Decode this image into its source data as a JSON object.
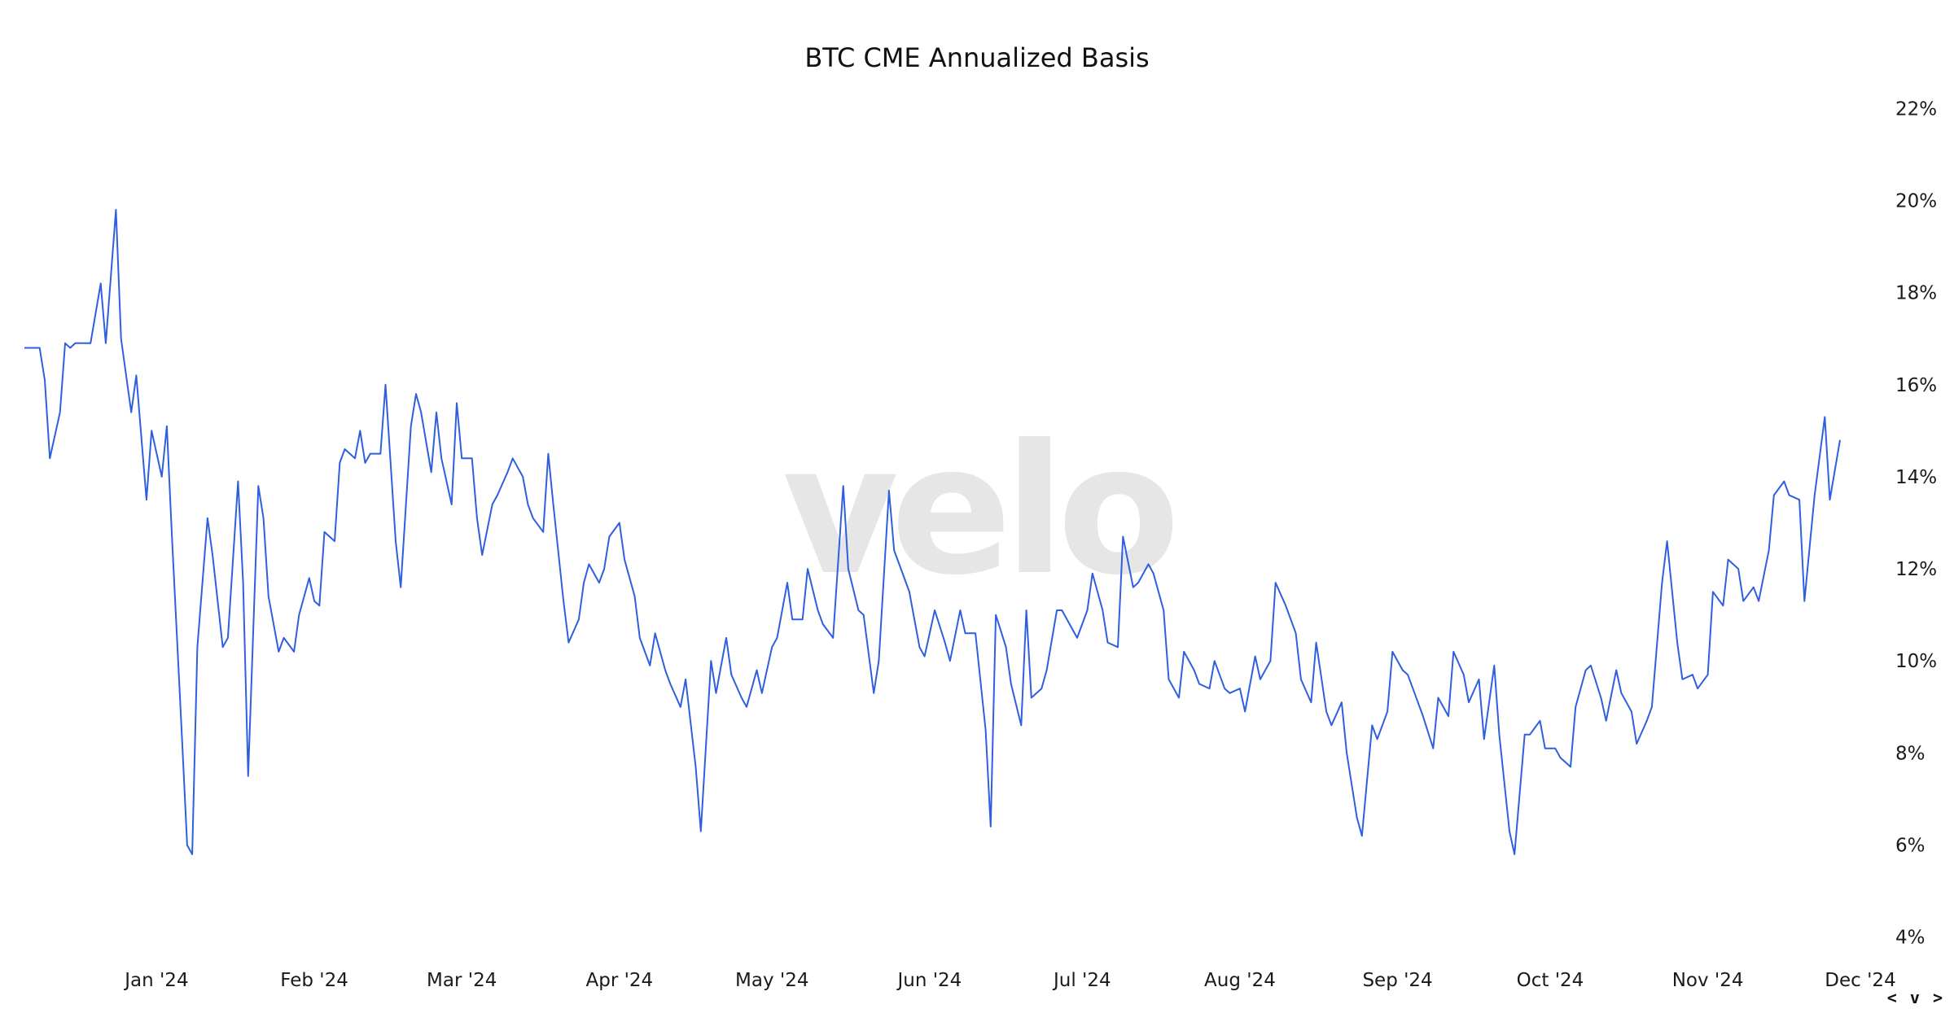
{
  "watermark": "velo",
  "nav": {
    "arrows": "< v >"
  },
  "chart_data": {
    "type": "line",
    "title": "BTC CME Annualized Basis",
    "xlabel": "",
    "ylabel": "",
    "y_axis_position": "right",
    "y_tick_format": "%",
    "ylim": [
      3.5,
      22.5
    ],
    "y_ticks": [
      4,
      6,
      8,
      10,
      12,
      14,
      16,
      18,
      20,
      22
    ],
    "x_range": [
      "2023-12-06",
      "2024-12-05"
    ],
    "x_ticks": [
      {
        "date": "2024-01-01",
        "label": "Jan '24"
      },
      {
        "date": "2024-02-01",
        "label": "Feb '24"
      },
      {
        "date": "2024-03-01",
        "label": "Mar '24"
      },
      {
        "date": "2024-04-01",
        "label": "Apr '24"
      },
      {
        "date": "2024-05-01",
        "label": "May '24"
      },
      {
        "date": "2024-06-01",
        "label": "Jun '24"
      },
      {
        "date": "2024-07-01",
        "label": "Jul '24"
      },
      {
        "date": "2024-08-01",
        "label": "Aug '24"
      },
      {
        "date": "2024-09-01",
        "label": "Sep '24"
      },
      {
        "date": "2024-10-01",
        "label": "Oct '24"
      },
      {
        "date": "2024-11-01",
        "label": "Nov '24"
      },
      {
        "date": "2024-12-01",
        "label": "Dec '24"
      }
    ],
    "grid": false,
    "legend": "none",
    "series": [
      {
        "color": "#2f5fe0",
        "points": [
          [
            "2023-12-06",
            16.8
          ],
          [
            "2023-12-09",
            16.8
          ],
          [
            "2023-12-10",
            16.1
          ],
          [
            "2023-12-11",
            14.4
          ],
          [
            "2023-12-13",
            15.4
          ],
          [
            "2023-12-14",
            16.9
          ],
          [
            "2023-12-15",
            16.8
          ],
          [
            "2023-12-16",
            16.9
          ],
          [
            "2023-12-18",
            16.9
          ],
          [
            "2023-12-19",
            16.9
          ],
          [
            "2023-12-21",
            18.2
          ],
          [
            "2023-12-22",
            16.9
          ],
          [
            "2023-12-24",
            19.8
          ],
          [
            "2023-12-25",
            17.0
          ],
          [
            "2023-12-27",
            15.4
          ],
          [
            "2023-12-28",
            16.2
          ],
          [
            "2023-12-30",
            13.5
          ],
          [
            "2023-12-31",
            15.0
          ],
          [
            "2024-01-02",
            14.0
          ],
          [
            "2024-01-03",
            15.1
          ],
          [
            "2024-01-04",
            12.7
          ],
          [
            "2024-01-06",
            8.3
          ],
          [
            "2024-01-07",
            6.0
          ],
          [
            "2024-01-08",
            5.8
          ],
          [
            "2024-01-09",
            10.3
          ],
          [
            "2024-01-11",
            13.1
          ],
          [
            "2024-01-12",
            12.3
          ],
          [
            "2024-01-14",
            10.3
          ],
          [
            "2024-01-15",
            10.5
          ],
          [
            "2024-01-17",
            13.9
          ],
          [
            "2024-01-18",
            11.7
          ],
          [
            "2024-01-19",
            7.5
          ],
          [
            "2024-01-21",
            13.8
          ],
          [
            "2024-01-22",
            13.1
          ],
          [
            "2024-01-23",
            11.4
          ],
          [
            "2024-01-25",
            10.2
          ],
          [
            "2024-01-26",
            10.5
          ],
          [
            "2024-01-28",
            10.2
          ],
          [
            "2024-01-29",
            11.0
          ],
          [
            "2024-01-31",
            11.8
          ],
          [
            "2024-02-01",
            11.3
          ],
          [
            "2024-02-02",
            11.2
          ],
          [
            "2024-02-03",
            12.8
          ],
          [
            "2024-02-05",
            12.6
          ],
          [
            "2024-02-06",
            14.3
          ],
          [
            "2024-02-07",
            14.6
          ],
          [
            "2024-02-09",
            14.4
          ],
          [
            "2024-02-10",
            15.0
          ],
          [
            "2024-02-11",
            14.3
          ],
          [
            "2024-02-12",
            14.5
          ],
          [
            "2024-02-14",
            14.5
          ],
          [
            "2024-02-15",
            16.0
          ],
          [
            "2024-02-17",
            12.6
          ],
          [
            "2024-02-18",
            11.6
          ],
          [
            "2024-02-20",
            15.1
          ],
          [
            "2024-02-21",
            15.8
          ],
          [
            "2024-02-22",
            15.4
          ],
          [
            "2024-02-24",
            14.1
          ],
          [
            "2024-02-25",
            15.4
          ],
          [
            "2024-02-26",
            14.4
          ],
          [
            "2024-02-28",
            13.4
          ],
          [
            "2024-02-29",
            15.6
          ],
          [
            "2024-03-01",
            14.4
          ],
          [
            "2024-03-03",
            14.4
          ],
          [
            "2024-03-04",
            13.1
          ],
          [
            "2024-03-05",
            12.3
          ],
          [
            "2024-03-07",
            13.4
          ],
          [
            "2024-03-08",
            13.6
          ],
          [
            "2024-03-10",
            14.1
          ],
          [
            "2024-03-11",
            14.4
          ],
          [
            "2024-03-13",
            14.0
          ],
          [
            "2024-03-14",
            13.4
          ],
          [
            "2024-03-15",
            13.1
          ],
          [
            "2024-03-17",
            12.8
          ],
          [
            "2024-03-18",
            14.5
          ],
          [
            "2024-03-19",
            13.4
          ],
          [
            "2024-03-21",
            11.3
          ],
          [
            "2024-03-22",
            10.4
          ],
          [
            "2024-03-24",
            10.9
          ],
          [
            "2024-03-25",
            11.7
          ],
          [
            "2024-03-26",
            12.1
          ],
          [
            "2024-03-28",
            11.7
          ],
          [
            "2024-03-29",
            12.0
          ],
          [
            "2024-03-30",
            12.7
          ],
          [
            "2024-04-01",
            13.0
          ],
          [
            "2024-04-02",
            12.2
          ],
          [
            "2024-04-04",
            11.4
          ],
          [
            "2024-04-05",
            10.5
          ],
          [
            "2024-04-07",
            9.9
          ],
          [
            "2024-04-08",
            10.6
          ],
          [
            "2024-04-10",
            9.8
          ],
          [
            "2024-04-11",
            9.5
          ],
          [
            "2024-04-13",
            9.0
          ],
          [
            "2024-04-14",
            9.6
          ],
          [
            "2024-04-16",
            7.7
          ],
          [
            "2024-04-17",
            6.3
          ],
          [
            "2024-04-19",
            10.0
          ],
          [
            "2024-04-20",
            9.3
          ],
          [
            "2024-04-22",
            10.5
          ],
          [
            "2024-04-23",
            9.7
          ],
          [
            "2024-04-25",
            9.2
          ],
          [
            "2024-04-26",
            9.0
          ],
          [
            "2024-04-28",
            9.8
          ],
          [
            "2024-04-29",
            9.3
          ],
          [
            "2024-05-01",
            10.3
          ],
          [
            "2024-05-02",
            10.5
          ],
          [
            "2024-05-04",
            11.7
          ],
          [
            "2024-05-05",
            10.9
          ],
          [
            "2024-05-07",
            10.9
          ],
          [
            "2024-05-08",
            12.0
          ],
          [
            "2024-05-10",
            11.1
          ],
          [
            "2024-05-11",
            10.8
          ],
          [
            "2024-05-13",
            10.5
          ],
          [
            "2024-05-15",
            13.8
          ],
          [
            "2024-05-16",
            12.0
          ],
          [
            "2024-05-18",
            11.1
          ],
          [
            "2024-05-19",
            11.0
          ],
          [
            "2024-05-21",
            9.3
          ],
          [
            "2024-05-22",
            10.0
          ],
          [
            "2024-05-24",
            13.7
          ],
          [
            "2024-05-25",
            12.4
          ],
          [
            "2024-05-27",
            11.8
          ],
          [
            "2024-05-28",
            11.5
          ],
          [
            "2024-05-30",
            10.3
          ],
          [
            "2024-05-31",
            10.1
          ],
          [
            "2024-06-02",
            11.1
          ],
          [
            "2024-06-04",
            10.4
          ],
          [
            "2024-06-05",
            10.0
          ],
          [
            "2024-06-07",
            11.1
          ],
          [
            "2024-06-08",
            10.6
          ],
          [
            "2024-06-10",
            10.6
          ],
          [
            "2024-06-12",
            8.5
          ],
          [
            "2024-06-13",
            6.4
          ],
          [
            "2024-06-14",
            11.0
          ],
          [
            "2024-06-16",
            10.3
          ],
          [
            "2024-06-17",
            9.5
          ],
          [
            "2024-06-19",
            8.6
          ],
          [
            "2024-06-20",
            11.1
          ],
          [
            "2024-06-21",
            9.2
          ],
          [
            "2024-06-23",
            9.4
          ],
          [
            "2024-06-24",
            9.8
          ],
          [
            "2024-06-26",
            11.1
          ],
          [
            "2024-06-27",
            11.1
          ],
          [
            "2024-06-29",
            10.7
          ],
          [
            "2024-06-30",
            10.5
          ],
          [
            "2024-07-02",
            11.1
          ],
          [
            "2024-07-03",
            11.9
          ],
          [
            "2024-07-05",
            11.1
          ],
          [
            "2024-07-06",
            10.4
          ],
          [
            "2024-07-08",
            10.3
          ],
          [
            "2024-07-09",
            12.7
          ],
          [
            "2024-07-11",
            11.6
          ],
          [
            "2024-07-12",
            11.7
          ],
          [
            "2024-07-14",
            12.1
          ],
          [
            "2024-07-15",
            11.9
          ],
          [
            "2024-07-17",
            11.1
          ],
          [
            "2024-07-18",
            9.6
          ],
          [
            "2024-07-20",
            9.2
          ],
          [
            "2024-07-21",
            10.2
          ],
          [
            "2024-07-23",
            9.8
          ],
          [
            "2024-07-24",
            9.5
          ],
          [
            "2024-07-26",
            9.4
          ],
          [
            "2024-07-27",
            10.0
          ],
          [
            "2024-07-29",
            9.4
          ],
          [
            "2024-07-30",
            9.3
          ],
          [
            "2024-08-01",
            9.4
          ],
          [
            "2024-08-02",
            8.9
          ],
          [
            "2024-08-04",
            10.1
          ],
          [
            "2024-08-05",
            9.6
          ],
          [
            "2024-08-07",
            10.0
          ],
          [
            "2024-08-08",
            11.7
          ],
          [
            "2024-08-10",
            11.2
          ],
          [
            "2024-08-12",
            10.6
          ],
          [
            "2024-08-13",
            9.6
          ],
          [
            "2024-08-15",
            9.1
          ],
          [
            "2024-08-16",
            10.4
          ],
          [
            "2024-08-18",
            8.9
          ],
          [
            "2024-08-19",
            8.6
          ],
          [
            "2024-08-21",
            9.1
          ],
          [
            "2024-08-22",
            8.0
          ],
          [
            "2024-08-24",
            6.6
          ],
          [
            "2024-08-25",
            6.2
          ],
          [
            "2024-08-27",
            8.6
          ],
          [
            "2024-08-28",
            8.3
          ],
          [
            "2024-08-30",
            8.9
          ],
          [
            "2024-08-31",
            10.2
          ],
          [
            "2024-09-02",
            9.8
          ],
          [
            "2024-09-03",
            9.7
          ],
          [
            "2024-09-05",
            9.1
          ],
          [
            "2024-09-06",
            8.8
          ],
          [
            "2024-09-08",
            8.1
          ],
          [
            "2024-09-09",
            9.2
          ],
          [
            "2024-09-11",
            8.8
          ],
          [
            "2024-09-12",
            10.2
          ],
          [
            "2024-09-14",
            9.7
          ],
          [
            "2024-09-15",
            9.1
          ],
          [
            "2024-09-17",
            9.6
          ],
          [
            "2024-09-18",
            8.3
          ],
          [
            "2024-09-20",
            9.9
          ],
          [
            "2024-09-21",
            8.4
          ],
          [
            "2024-09-23",
            6.3
          ],
          [
            "2024-09-24",
            5.8
          ],
          [
            "2024-09-26",
            8.4
          ],
          [
            "2024-09-27",
            8.4
          ],
          [
            "2024-09-29",
            8.7
          ],
          [
            "2024-09-30",
            8.1
          ],
          [
            "2024-10-02",
            8.1
          ],
          [
            "2024-10-03",
            7.9
          ],
          [
            "2024-10-05",
            7.7
          ],
          [
            "2024-10-06",
            9.0
          ],
          [
            "2024-10-08",
            9.8
          ],
          [
            "2024-10-09",
            9.9
          ],
          [
            "2024-10-11",
            9.2
          ],
          [
            "2024-10-12",
            8.7
          ],
          [
            "2024-10-14",
            9.8
          ],
          [
            "2024-10-15",
            9.3
          ],
          [
            "2024-10-17",
            8.9
          ],
          [
            "2024-10-18",
            8.2
          ],
          [
            "2024-10-20",
            8.7
          ],
          [
            "2024-10-21",
            9.0
          ],
          [
            "2024-10-23",
            11.7
          ],
          [
            "2024-10-24",
            12.6
          ],
          [
            "2024-10-26",
            10.4
          ],
          [
            "2024-10-27",
            9.6
          ],
          [
            "2024-10-29",
            9.7
          ],
          [
            "2024-10-30",
            9.4
          ],
          [
            "2024-11-01",
            9.7
          ],
          [
            "2024-11-02",
            11.5
          ],
          [
            "2024-11-04",
            11.2
          ],
          [
            "2024-11-05",
            12.2
          ],
          [
            "2024-11-07",
            12.0
          ],
          [
            "2024-11-08",
            11.3
          ],
          [
            "2024-11-10",
            11.6
          ],
          [
            "2024-11-11",
            11.3
          ],
          [
            "2024-11-13",
            12.4
          ],
          [
            "2024-11-14",
            13.6
          ],
          [
            "2024-11-16",
            13.9
          ],
          [
            "2024-11-17",
            13.6
          ],
          [
            "2024-11-19",
            13.5
          ],
          [
            "2024-11-20",
            11.3
          ],
          [
            "2024-11-22",
            13.6
          ],
          [
            "2024-11-24",
            15.3
          ],
          [
            "2024-11-25",
            13.5
          ],
          [
            "2024-11-27",
            14.8
          ]
        ]
      }
    ]
  }
}
